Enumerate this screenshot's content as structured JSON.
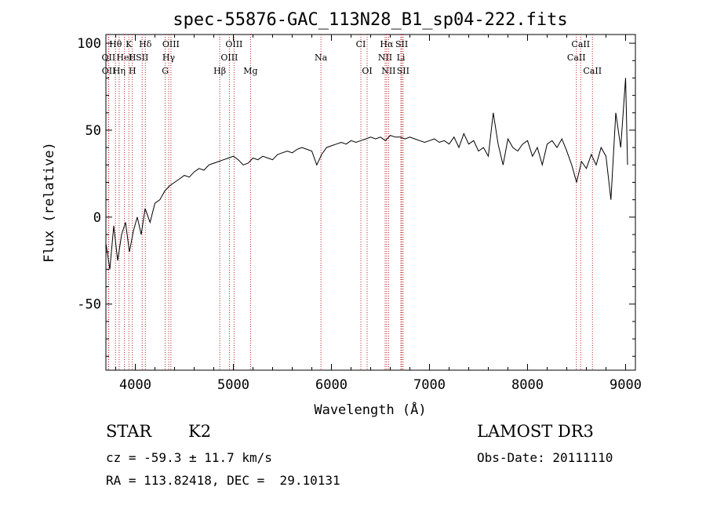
{
  "chart_data": {
    "type": "line",
    "title": "spec-55876-GAC_113N28_B1_sp04-222.fits",
    "xlabel": "Wavelength (Å)",
    "ylabel": "Flux (relative)",
    "xlim": [
      3700,
      9100
    ],
    "ylim": [
      -88,
      105
    ],
    "xticks": [
      4000,
      5000,
      6000,
      7000,
      8000,
      9000
    ],
    "yticks": [
      -50,
      0,
      50,
      100
    ],
    "series": [
      {
        "name": "spectrum",
        "x": [
          3700,
          3740,
          3780,
          3820,
          3860,
          3900,
          3940,
          3980,
          4020,
          4060,
          4100,
          4150,
          4200,
          4250,
          4300,
          4350,
          4400,
          4450,
          4500,
          4550,
          4600,
          4650,
          4700,
          4750,
          4800,
          4850,
          4900,
          4950,
          5000,
          5050,
          5100,
          5150,
          5200,
          5250,
          5300,
          5350,
          5400,
          5450,
          5500,
          5550,
          5600,
          5650,
          5700,
          5750,
          5800,
          5850,
          5900,
          5950,
          6000,
          6050,
          6100,
          6150,
          6200,
          6250,
          6300,
          6350,
          6400,
          6450,
          6500,
          6550,
          6600,
          6650,
          6700,
          6750,
          6800,
          6850,
          6900,
          6950,
          7000,
          7050,
          7100,
          7150,
          7200,
          7250,
          7300,
          7350,
          7400,
          7450,
          7500,
          7550,
          7600,
          7650,
          7700,
          7750,
          7800,
          7850,
          7900,
          7950,
          8000,
          8050,
          8100,
          8150,
          8200,
          8250,
          8300,
          8350,
          8400,
          8450,
          8500,
          8550,
          8600,
          8650,
          8700,
          8750,
          8800,
          8850,
          8900,
          8950,
          9000,
          9020
        ],
        "y": [
          -15,
          -30,
          -5,
          -25,
          -10,
          -3,
          -20,
          -8,
          0,
          -10,
          5,
          -3,
          8,
          10,
          15,
          18,
          20,
          22,
          24,
          23,
          26,
          28,
          27,
          30,
          31,
          32,
          33,
          34,
          35,
          33,
          30,
          31,
          34,
          33,
          35,
          34,
          33,
          36,
          37,
          38,
          37,
          39,
          40,
          39,
          38,
          30,
          36,
          40,
          41,
          42,
          43,
          42,
          44,
          43,
          44,
          45,
          46,
          45,
          46,
          44,
          47,
          46,
          46,
          45,
          46,
          45,
          44,
          43,
          44,
          45,
          43,
          44,
          42,
          46,
          40,
          48,
          42,
          44,
          38,
          40,
          35,
          60,
          42,
          30,
          45,
          40,
          38,
          42,
          44,
          35,
          40,
          30,
          42,
          44,
          40,
          45,
          38,
          30,
          20,
          32,
          28,
          36,
          30,
          40,
          35,
          10,
          60,
          40,
          80,
          30
        ]
      }
    ],
    "spectral_lines": [
      {
        "name": "Hθ",
        "wavelength": 3798,
        "row": 0
      },
      {
        "name": "K",
        "wavelength": 3934,
        "row": 0
      },
      {
        "name": "Hδ",
        "wavelength": 4102,
        "row": 0
      },
      {
        "name": "OIII",
        "wavelength": 4363,
        "row": 0
      },
      {
        "name": "OIII",
        "wavelength": 5007,
        "row": 0
      },
      {
        "name": "CI",
        "wavelength": 6300,
        "row": 0
      },
      {
        "name": "Hα",
        "wavelength": 6563,
        "row": 0
      },
      {
        "name": "SII",
        "wavelength": 6717,
        "row": 0
      },
      {
        "name": "CaII",
        "wavelength": 8542,
        "row": 0
      },
      {
        "name": "OII",
        "wavelength": 3727,
        "row": 1
      },
      {
        "name": "H",
        "wavelength": 3969,
        "row": 1
      },
      {
        "name": "HeI",
        "wavelength": 3889,
        "row": 1
      },
      {
        "name": "SII",
        "wavelength": 4070,
        "row": 1
      },
      {
        "name": "Hγ",
        "wavelength": 4340,
        "row": 1
      },
      {
        "name": "OIII",
        "wavelength": 4959,
        "row": 1
      },
      {
        "name": "Na",
        "wavelength": 5893,
        "row": 1
      },
      {
        "name": "NII",
        "wavelength": 6548,
        "row": 1
      },
      {
        "name": "Li",
        "wavelength": 6708,
        "row": 1
      },
      {
        "name": "CaII",
        "wavelength": 8498,
        "row": 1
      },
      {
        "name": "OII",
        "wavelength": 3729,
        "row": 2
      },
      {
        "name": "Hη",
        "wavelength": 3835,
        "row": 2
      },
      {
        "name": "H",
        "wavelength": 3970,
        "row": 2
      },
      {
        "name": "G",
        "wavelength": 4305,
        "row": 2
      },
      {
        "name": "Hβ",
        "wavelength": 4861,
        "row": 2
      },
      {
        "name": "Mg",
        "wavelength": 5175,
        "row": 2
      },
      {
        "name": "OI",
        "wavelength": 6364,
        "row": 2
      },
      {
        "name": "NII",
        "wavelength": 6583,
        "row": 2
      },
      {
        "name": "SII",
        "wavelength": 6731,
        "row": 2
      },
      {
        "name": "CaII",
        "wavelength": 8662,
        "row": 2
      }
    ],
    "grid": false,
    "legend": "none"
  },
  "info": {
    "object_class": "STAR",
    "subclass": "K2",
    "survey": "LAMOST DR3",
    "redshift_text": "cz = -59.3 ± 11.7 km/s",
    "obs_date": "Obs-Date: 20111110",
    "coords": "RA = 113.82418, DEC =  29.10131"
  },
  "colors": {
    "line": "#000000",
    "marker": "#b22222",
    "background": "#ffffff"
  }
}
